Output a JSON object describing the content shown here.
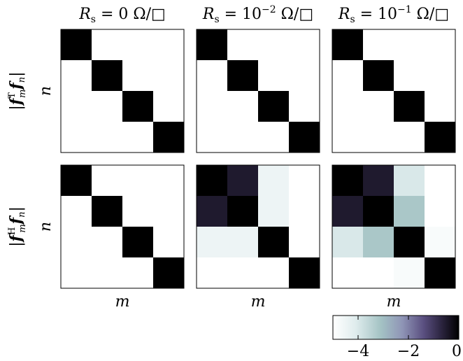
{
  "chart_data": {
    "type": "heatmap",
    "scale": "log10",
    "zlim": [
      -5,
      0
    ],
    "colorbar": {
      "ticks": [
        -4,
        -2,
        0
      ],
      "tick_labels": [
        "−4",
        "−2",
        "0"
      ]
    },
    "columns": [
      {
        "title": {
          "prefix": "R",
          "sub": "s",
          "eq": " = 0 Ω/□",
          "sup": ""
        }
      },
      {
        "title": {
          "prefix": "R",
          "sub": "s",
          "eq": " = 10",
          "sup": "−2",
          "unit": " Ω/□"
        }
      },
      {
        "title": {
          "prefix": "R",
          "sub": "s",
          "eq": " = 10",
          "sup": "−1",
          "unit": " Ω/□"
        }
      }
    ],
    "rows": [
      {
        "ylabel": {
          "pre": "|",
          "f": "f",
          "sub": "m",
          "sup": "T",
          "f2": "f",
          "sub2": "n",
          "post": "|"
        }
      },
      {
        "ylabel": {
          "pre": "|",
          "f": "f",
          "sub": "m",
          "sup": "H",
          "f2": "f",
          "sub2": "n",
          "post": "|"
        }
      }
    ],
    "xlabel": "m",
    "ylabel_axis": "n",
    "panels": [
      [
        [
          [
            0,
            -6,
            -6,
            -6
          ],
          [
            -6,
            0,
            -6,
            -6
          ],
          [
            -6,
            -6,
            0,
            -6
          ],
          [
            -6,
            -6,
            -6,
            0
          ]
        ],
        [
          [
            0,
            -6,
            -6,
            -6
          ],
          [
            -6,
            0,
            -6,
            -6
          ],
          [
            -6,
            -6,
            0,
            -6
          ],
          [
            -6,
            -6,
            -6,
            0
          ]
        ],
        [
          [
            0,
            -6,
            -6,
            -6
          ],
          [
            -6,
            0,
            -6,
            -6
          ],
          [
            -6,
            -6,
            0,
            -6
          ],
          [
            -6,
            -6,
            -6,
            0
          ]
        ]
      ],
      [
        [
          [
            0,
            -6,
            -6,
            -6
          ],
          [
            -6,
            0,
            -6,
            -6
          ],
          [
            -6,
            -6,
            0,
            -6
          ],
          [
            -6,
            -6,
            -6,
            0
          ]
        ],
        [
          [
            0,
            -0.5,
            -4.5,
            -6
          ],
          [
            -0.5,
            0,
            -4.5,
            -6
          ],
          [
            -4.5,
            -4.5,
            0,
            -6
          ],
          [
            -6,
            -6,
            -6,
            0
          ]
        ],
        [
          [
            0,
            -0.5,
            -4,
            -6
          ],
          [
            -0.5,
            0,
            -3.2,
            -6
          ],
          [
            -4,
            -3.2,
            0,
            -4.8
          ],
          [
            -6,
            -6,
            -4.8,
            0
          ]
        ]
      ]
    ]
  }
}
